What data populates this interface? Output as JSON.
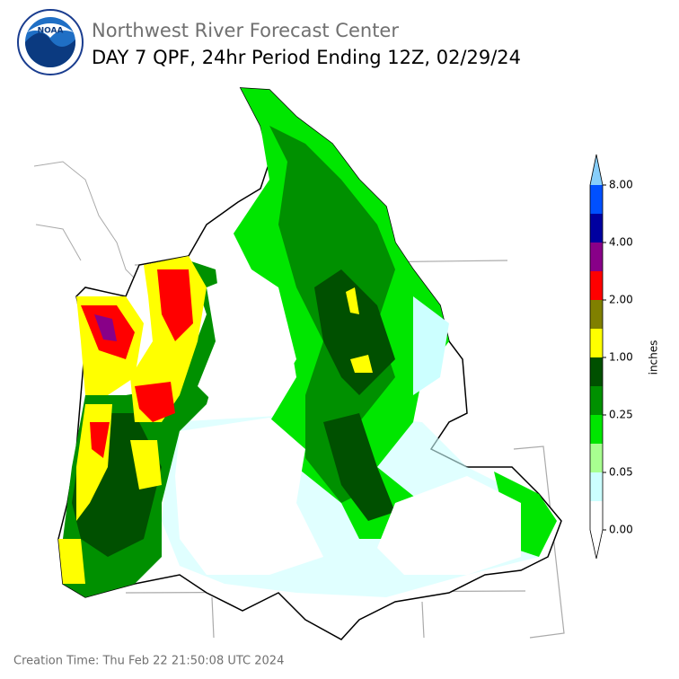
{
  "header": {
    "agency": "Northwest River Forecast Center",
    "title": "DAY 7 QPF, 24hr Period Ending 12Z, 02/29/24",
    "logo_text": "NOAA"
  },
  "legend": {
    "label": "inches",
    "colors": [
      "#ffffff",
      "#ccffff",
      "#a8ff90",
      "#00e600",
      "#009000",
      "#005000",
      "#ffff00",
      "#808000",
      "#ff0000",
      "#880088",
      "#0000a0",
      "#0050ff"
    ],
    "over_color": "#87cefa",
    "under_color": "#ffffff",
    "ticks": [
      {
        "value": 0,
        "label": "0.00"
      },
      {
        "value": 0.05,
        "label": "0.05"
      },
      {
        "value": 0.25,
        "label": "0.25"
      },
      {
        "value": 1,
        "label": "1.00"
      },
      {
        "value": 2,
        "label": "2.00"
      },
      {
        "value": 4,
        "label": "4.00"
      },
      {
        "value": 8,
        "label": "8.00"
      }
    ]
  },
  "footer": {
    "creation_time": "Creation Time: Thu Feb 22 21:50:08 UTC 2024"
  }
}
